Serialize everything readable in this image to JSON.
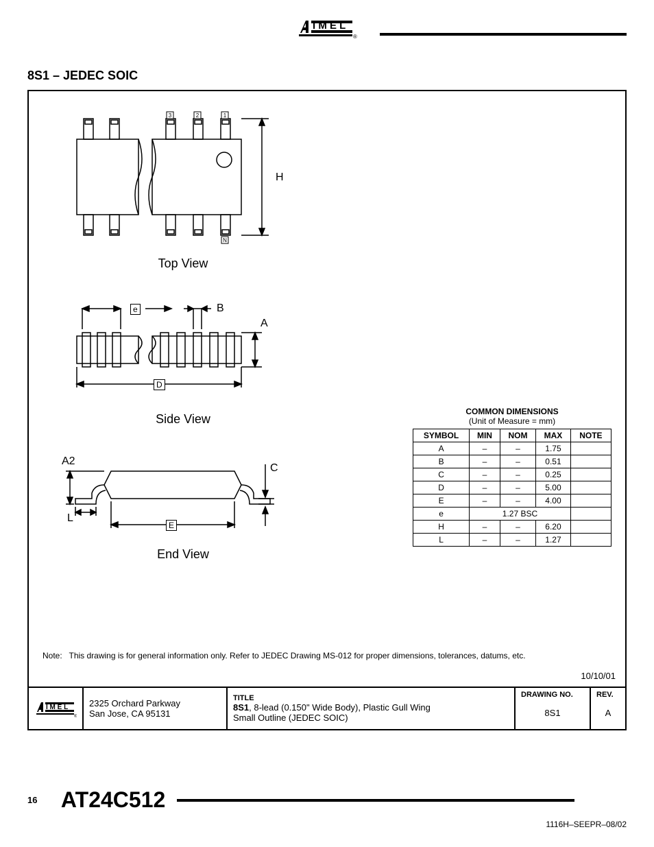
{
  "header": {
    "brand": "Atmel"
  },
  "section_title": "8S1 – JEDEC SOIC",
  "views": {
    "top": {
      "label": "Top View",
      "pin_labels": [
        "3",
        "2",
        "1",
        "N"
      ],
      "dim_H": "H"
    },
    "side": {
      "label": "Side View",
      "dim_e": "e",
      "dim_B": "B",
      "dim_A": "A",
      "dim_D": "D"
    },
    "end": {
      "label": "End View",
      "dim_A2": "A2",
      "dim_C": "C",
      "dim_L": "L",
      "dim_E": "E"
    }
  },
  "dim_table": {
    "title": "COMMON DIMENSIONS",
    "subtitle": "(Unit of Measure = mm)",
    "headers": [
      "SYMBOL",
      "MIN",
      "NOM",
      "MAX",
      "NOTE"
    ],
    "rows": [
      {
        "sym": "A",
        "min": "–",
        "nom": "–",
        "max": "1.75",
        "note": ""
      },
      {
        "sym": "B",
        "min": "–",
        "nom": "–",
        "max": "0.51",
        "note": ""
      },
      {
        "sym": "C",
        "min": "–",
        "nom": "–",
        "max": "0.25",
        "note": ""
      },
      {
        "sym": "D",
        "min": "–",
        "nom": "–",
        "max": "5.00",
        "note": ""
      },
      {
        "sym": "E",
        "min": "–",
        "nom": "–",
        "max": "4.00",
        "note": ""
      },
      {
        "sym": "e",
        "min": "",
        "nom": "1.27 BSC",
        "max": "",
        "note": "",
        "span": true
      },
      {
        "sym": "H",
        "min": "–",
        "nom": "–",
        "max": "6.20",
        "note": ""
      },
      {
        "sym": "L",
        "min": "–",
        "nom": "–",
        "max": "1.27",
        "note": ""
      }
    ]
  },
  "note": {
    "label": "Note:",
    "text": "This drawing is for general information only. Refer to JEDEC Drawing MS-012 for proper dimensions, tolerances, datums, etc."
  },
  "date": "10/10/01",
  "title_block": {
    "addr_line1": "2325 Orchard Parkway",
    "addr_line2": "San Jose, CA  95131",
    "title_label": "TITLE",
    "title_line1": "8S1, 8-lead (0.150\" Wide Body), Plastic Gull Wing",
    "title_line1_bold": "8S1",
    "title_line1_rest": ", 8-lead (0.150\" Wide Body), Plastic Gull Wing",
    "title_line2": "Small Outline (JEDEC SOIC)",
    "drawno_label": "DRAWING NO.",
    "drawno": "8S1",
    "rev_label": "REV.",
    "rev": "A"
  },
  "footer": {
    "page_num": "16",
    "part_num": "AT24C512",
    "doc_id": "1116H–SEEPR–08/02"
  },
  "colors": {
    "text": "#000000",
    "bg": "#ffffff",
    "rule": "#000000",
    "border": "#000000"
  }
}
